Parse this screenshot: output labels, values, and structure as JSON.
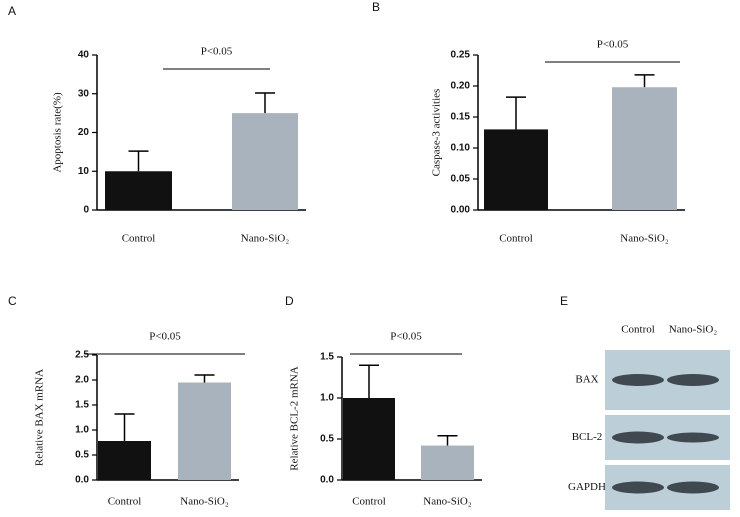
{
  "chart_data": [
    {
      "type": "bar",
      "panel_label": "A",
      "y_label": "Apoptosis rate(%)",
      "annotation": "P<0.05",
      "categories": [
        "Control",
        "Nano-SiO₂"
      ],
      "values": [
        10,
        25
      ],
      "errors": [
        5.2,
        5.2
      ],
      "colors": [
        "#111111",
        "#a8b3bd"
      ],
      "ylim": [
        0,
        40
      ],
      "yticks": [
        0,
        10,
        20,
        30,
        40
      ]
    },
    {
      "type": "bar",
      "panel_label": "B",
      "y_label": "Caspase-3 activities",
      "annotation": "P<0.05",
      "categories": [
        "Control",
        "Nano-SiO₂"
      ],
      "values": [
        0.13,
        0.198
      ],
      "errors": [
        0.052,
        0.02
      ],
      "colors": [
        "#111111",
        "#a8b3bd"
      ],
      "ylim": [
        0,
        0.25
      ],
      "yticks": [
        {
          "value": 0,
          "label": "0.00"
        },
        {
          "value": 0.05,
          "label": "0.05"
        },
        {
          "value": 0.1,
          "label": "0.10"
        },
        {
          "value": 0.15,
          "label": "0.15"
        },
        {
          "value": 0.2,
          "label": "0.20"
        },
        {
          "value": 0.25,
          "label": "0.25"
        }
      ]
    },
    {
      "type": "bar",
      "panel_label": "C",
      "y_label": "Relative BAX mRNA",
      "annotation": "P<0.05",
      "categories": [
        "Control",
        "Nano-SiO₂"
      ],
      "values": [
        0.78,
        1.95
      ],
      "errors": [
        0.54,
        0.15
      ],
      "colors": [
        "#111111",
        "#a8b3bd"
      ],
      "ylim": [
        0,
        2.5
      ],
      "yticks": [
        {
          "value": 0,
          "label": "0.0"
        },
        {
          "value": 0.5,
          "label": "0.5"
        },
        {
          "value": 1,
          "label": "1.0"
        },
        {
          "value": 1.5,
          "label": "1.5"
        },
        {
          "value": 2,
          "label": "2.0"
        },
        {
          "value": 2.5,
          "label": "2.5"
        }
      ]
    },
    {
      "type": "bar",
      "panel_label": "D",
      "y_label": "Relative BCL-2 mRNA",
      "annotation": "P<0.05",
      "categories": [
        "Control",
        "Nano-SiO₂"
      ],
      "values": [
        1.0,
        0.42
      ],
      "errors": [
        0.4,
        0.12
      ],
      "colors": [
        "#111111",
        "#a8b3bd"
      ],
      "ylim": [
        0,
        1.5
      ],
      "yticks": [
        {
          "value": 0,
          "label": "0.0"
        },
        {
          "value": 0.5,
          "label": "0.5"
        },
        {
          "value": 1,
          "label": "1.0"
        },
        {
          "value": 1.5,
          "label": "1.5"
        }
      ]
    },
    {
      "type": "blot",
      "panel_label": "E",
      "lanes": [
        "Control",
        "Nano-SiO₂"
      ],
      "rows": [
        "BAX",
        "BCL-2",
        "GAPDH"
      ]
    }
  ]
}
